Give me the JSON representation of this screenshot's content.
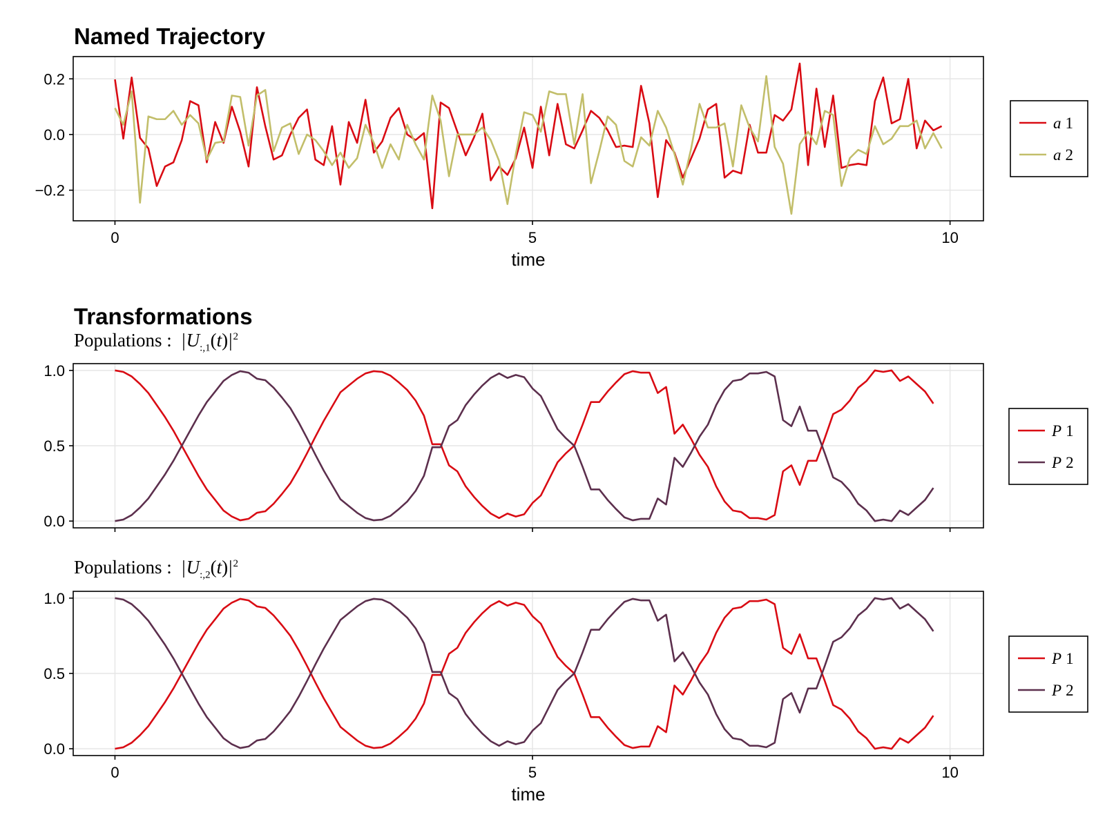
{
  "titles": {
    "top": "Named Trajectory",
    "bottom": "Transformations"
  },
  "subtitles": {
    "mid": {
      "prefix": "Populations :",
      "sub": ":,1",
      "sup": "2"
    },
    "bot": {
      "prefix": "Populations :",
      "sub": ":,2",
      "sup": "2"
    }
  },
  "colors": {
    "red": "#d90b13",
    "olive": "#c2be6a",
    "plum": "#5c2f4d",
    "grid": "#e6e6e6",
    "frame": "#000000"
  },
  "chart_data": [
    {
      "id": "named-trajectory",
      "type": "line",
      "title": "Named Trajectory",
      "xlabel": "time",
      "ylabel": "",
      "xlim": [
        -0.5,
        10.4
      ],
      "ylim": [
        -0.31,
        0.28
      ],
      "xticks": [
        0,
        5,
        10
      ],
      "xtick_labels": [
        "0",
        "5",
        "10"
      ],
      "yticks": [
        -0.2,
        0.0,
        0.2
      ],
      "ytick_labels": [
        "−0.2",
        "0.0",
        "0.2"
      ],
      "grid": true,
      "legend_position": "right",
      "x_start": 0,
      "x_step": 0.1,
      "series": [
        {
          "name": "a 1",
          "color": "#d90b13",
          "values": [
            0.198,
            -0.015,
            0.205,
            -0.012,
            -0.05,
            -0.185,
            -0.115,
            -0.1,
            -0.02,
            0.12,
            0.105,
            -0.1,
            0.045,
            -0.03,
            0.1,
            0.01,
            -0.115,
            0.17,
            0.03,
            -0.09,
            -0.075,
            0.0,
            0.06,
            0.09,
            -0.09,
            -0.11,
            0.03,
            -0.18,
            0.045,
            -0.03,
            0.125,
            -0.065,
            -0.025,
            0.06,
            0.095,
            0.0,
            -0.02,
            0.005,
            -0.265,
            0.115,
            0.095,
            0.01,
            -0.075,
            -0.01,
            0.075,
            -0.165,
            -0.115,
            -0.145,
            -0.085,
            0.025,
            -0.12,
            0.1,
            -0.075,
            0.11,
            -0.035,
            -0.05,
            0.015,
            0.085,
            0.06,
            0.015,
            -0.045,
            -0.04,
            -0.045,
            0.175,
            0.04,
            -0.225,
            -0.02,
            -0.065,
            -0.155,
            -0.085,
            -0.015,
            0.09,
            0.11,
            -0.155,
            -0.13,
            -0.14,
            0.035,
            -0.065,
            -0.065,
            0.07,
            0.05,
            0.09,
            0.255,
            -0.11,
            0.165,
            -0.045,
            0.14,
            -0.12,
            -0.11,
            -0.105,
            -0.11,
            0.12,
            0.205,
            0.04,
            0.055,
            0.2,
            -0.05,
            0.05,
            0.015,
            0.03
          ]
        },
        {
          "name": "a 2",
          "color": "#c2be6a",
          "values": [
            0.095,
            0.035,
            0.155,
            -0.245,
            0.065,
            0.055,
            0.055,
            0.085,
            0.035,
            0.07,
            0.04,
            -0.09,
            -0.03,
            -0.025,
            0.14,
            0.135,
            -0.04,
            0.14,
            0.16,
            -0.06,
            0.025,
            0.04,
            -0.07,
            0.0,
            -0.02,
            -0.06,
            -0.11,
            -0.065,
            -0.12,
            -0.085,
            0.035,
            -0.03,
            -0.12,
            -0.035,
            -0.09,
            0.035,
            -0.035,
            -0.09,
            0.14,
            0.05,
            -0.15,
            0.0,
            0.0,
            0.0,
            0.025,
            -0.02,
            -0.095,
            -0.25,
            -0.07,
            0.08,
            0.07,
            0.01,
            0.155,
            0.145,
            0.145,
            -0.035,
            0.145,
            -0.175,
            -0.06,
            0.065,
            0.035,
            -0.095,
            -0.115,
            -0.01,
            -0.04,
            0.085,
            0.025,
            -0.07,
            -0.18,
            -0.05,
            0.11,
            0.025,
            0.025,
            0.04,
            -0.115,
            0.105,
            0.025,
            -0.025,
            0.21,
            -0.045,
            -0.105,
            -0.285,
            -0.035,
            0.01,
            -0.035,
            0.085,
            0.07,
            -0.185,
            -0.085,
            -0.055,
            -0.07,
            0.03,
            -0.035,
            -0.015,
            0.03,
            0.03,
            0.05,
            -0.05,
            0.005,
            -0.05
          ]
        }
      ]
    },
    {
      "id": "populations-1",
      "type": "line",
      "title": "Transformations",
      "subtitle": "Populations : |U:,1(t)|2",
      "xlabel": "",
      "ylabel": "",
      "xlim": [
        -0.5,
        10.4
      ],
      "ylim": [
        -0.045,
        1.045
      ],
      "xticks": [
        0,
        5,
        10
      ],
      "yticks": [
        0.0,
        0.5,
        1.0
      ],
      "ytick_labels": [
        "0.0",
        "0.5",
        "1.0"
      ],
      "grid": true,
      "legend_position": "right",
      "x_start": 0,
      "x_step": 0.1,
      "series": [
        {
          "name": "P 1",
          "color": "#d90b13",
          "values": [
            1.0,
            0.99,
            0.96,
            0.91,
            0.85,
            0.77,
            0.69,
            0.6,
            0.5,
            0.4,
            0.3,
            0.21,
            0.14,
            0.07,
            0.03,
            0.005,
            0.015,
            0.055,
            0.065,
            0.115,
            0.18,
            0.25,
            0.345,
            0.45,
            0.56,
            0.665,
            0.76,
            0.855,
            0.9,
            0.945,
            0.98,
            0.995,
            0.99,
            0.965,
            0.92,
            0.87,
            0.8,
            0.7,
            0.51,
            0.51,
            0.37,
            0.33,
            0.23,
            0.16,
            0.1,
            0.05,
            0.02,
            0.05,
            0.03,
            0.045,
            0.12,
            0.17,
            0.28,
            0.39,
            0.45,
            0.5,
            0.64,
            0.79,
            0.79,
            0.86,
            0.92,
            0.975,
            0.995,
            0.985,
            0.985,
            0.85,
            0.89,
            0.58,
            0.64,
            0.545,
            0.44,
            0.36,
            0.23,
            0.13,
            0.07,
            0.06,
            0.02,
            0.02,
            0.01,
            0.04,
            0.33,
            0.37,
            0.24,
            0.4,
            0.4,
            0.55,
            0.71,
            0.74,
            0.8,
            0.885,
            0.93,
            1.0,
            0.99,
            1.0,
            0.93,
            0.96,
            0.91,
            0.86,
            0.78
          ]
        },
        {
          "name": "P 2",
          "color": "#5c2f4d",
          "values": [
            0.0,
            0.01,
            0.04,
            0.09,
            0.15,
            0.23,
            0.31,
            0.4,
            0.5,
            0.6,
            0.7,
            0.79,
            0.86,
            0.93,
            0.97,
            0.995,
            0.985,
            0.945,
            0.935,
            0.885,
            0.82,
            0.75,
            0.655,
            0.55,
            0.44,
            0.335,
            0.24,
            0.145,
            0.1,
            0.055,
            0.02,
            0.005,
            0.01,
            0.035,
            0.08,
            0.13,
            0.2,
            0.3,
            0.49,
            0.49,
            0.63,
            0.67,
            0.77,
            0.84,
            0.9,
            0.95,
            0.98,
            0.95,
            0.97,
            0.955,
            0.88,
            0.83,
            0.72,
            0.61,
            0.55,
            0.5,
            0.36,
            0.21,
            0.21,
            0.14,
            0.08,
            0.025,
            0.005,
            0.015,
            0.015,
            0.15,
            0.11,
            0.42,
            0.36,
            0.455,
            0.56,
            0.64,
            0.77,
            0.87,
            0.93,
            0.94,
            0.98,
            0.98,
            0.99,
            0.96,
            0.67,
            0.63,
            0.76,
            0.6,
            0.6,
            0.45,
            0.29,
            0.26,
            0.2,
            0.115,
            0.07,
            0.0,
            0.01,
            0.0,
            0.07,
            0.04,
            0.09,
            0.14,
            0.22
          ]
        }
      ]
    },
    {
      "id": "populations-2",
      "type": "line",
      "subtitle": "Populations : |U:,2(t)|2",
      "xlabel": "time",
      "ylabel": "",
      "xlim": [
        -0.5,
        10.4
      ],
      "ylim": [
        -0.045,
        1.045
      ],
      "xticks": [
        0,
        5,
        10
      ],
      "xtick_labels": [
        "0",
        "5",
        "10"
      ],
      "yticks": [
        0.0,
        0.5,
        1.0
      ],
      "ytick_labels": [
        "0.0",
        "0.5",
        "1.0"
      ],
      "grid": true,
      "legend_position": "right",
      "x_start": 0,
      "x_step": 0.1,
      "series": [
        {
          "name": "P 1",
          "color": "#d90b13",
          "values": [
            0.0,
            0.01,
            0.04,
            0.09,
            0.15,
            0.23,
            0.31,
            0.4,
            0.5,
            0.6,
            0.7,
            0.79,
            0.86,
            0.93,
            0.97,
            0.995,
            0.985,
            0.945,
            0.935,
            0.885,
            0.82,
            0.75,
            0.655,
            0.55,
            0.44,
            0.335,
            0.24,
            0.145,
            0.1,
            0.055,
            0.02,
            0.005,
            0.01,
            0.035,
            0.08,
            0.13,
            0.2,
            0.3,
            0.49,
            0.49,
            0.63,
            0.67,
            0.77,
            0.84,
            0.9,
            0.95,
            0.98,
            0.95,
            0.97,
            0.955,
            0.88,
            0.83,
            0.72,
            0.61,
            0.55,
            0.5,
            0.36,
            0.21,
            0.21,
            0.14,
            0.08,
            0.025,
            0.005,
            0.015,
            0.015,
            0.15,
            0.11,
            0.42,
            0.36,
            0.455,
            0.56,
            0.64,
            0.77,
            0.87,
            0.93,
            0.94,
            0.98,
            0.98,
            0.99,
            0.96,
            0.67,
            0.63,
            0.76,
            0.6,
            0.6,
            0.45,
            0.29,
            0.26,
            0.2,
            0.115,
            0.07,
            0.0,
            0.01,
            0.0,
            0.07,
            0.04,
            0.09,
            0.14,
            0.22
          ]
        },
        {
          "name": "P 2",
          "color": "#5c2f4d",
          "values": [
            1.0,
            0.99,
            0.96,
            0.91,
            0.85,
            0.77,
            0.69,
            0.6,
            0.5,
            0.4,
            0.3,
            0.21,
            0.14,
            0.07,
            0.03,
            0.005,
            0.015,
            0.055,
            0.065,
            0.115,
            0.18,
            0.25,
            0.345,
            0.45,
            0.56,
            0.665,
            0.76,
            0.855,
            0.9,
            0.945,
            0.98,
            0.995,
            0.99,
            0.965,
            0.92,
            0.87,
            0.8,
            0.7,
            0.51,
            0.51,
            0.37,
            0.33,
            0.23,
            0.16,
            0.1,
            0.05,
            0.02,
            0.05,
            0.03,
            0.045,
            0.12,
            0.17,
            0.28,
            0.39,
            0.45,
            0.5,
            0.64,
            0.79,
            0.79,
            0.86,
            0.92,
            0.975,
            0.995,
            0.985,
            0.985,
            0.85,
            0.89,
            0.58,
            0.64,
            0.545,
            0.44,
            0.36,
            0.23,
            0.13,
            0.07,
            0.06,
            0.02,
            0.02,
            0.01,
            0.04,
            0.33,
            0.37,
            0.24,
            0.4,
            0.4,
            0.55,
            0.71,
            0.74,
            0.8,
            0.885,
            0.93,
            1.0,
            0.99,
            1.0,
            0.93,
            0.96,
            0.91,
            0.86,
            0.78
          ]
        }
      ]
    }
  ]
}
